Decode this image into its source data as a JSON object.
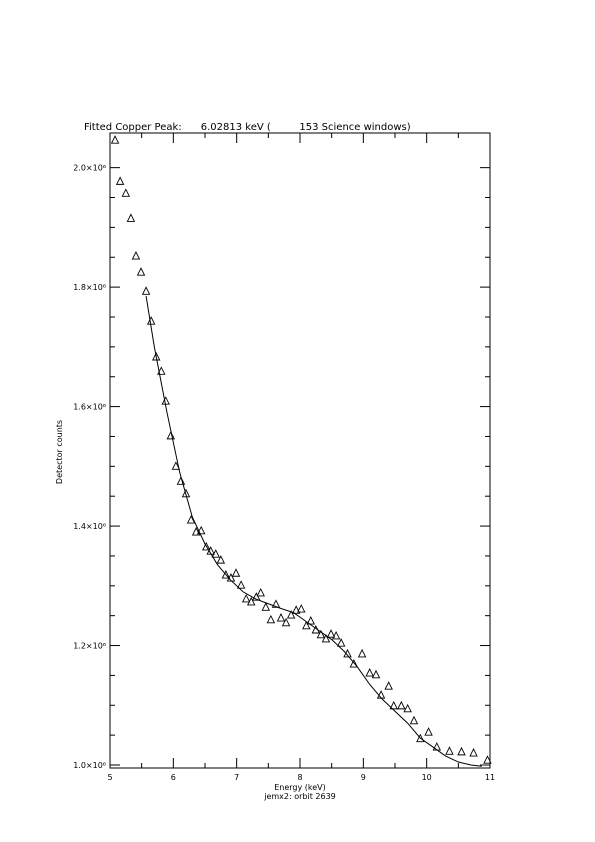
{
  "chart_data": {
    "type": "scatter",
    "title": "Fitted Copper Peak:      6.02813 keV (         153 Science windows)",
    "x_label": "Energy (keV)",
    "subtitle": "jemx2: orbit 2639",
    "y_label": "Detector counts",
    "xlim": [
      5,
      11
    ],
    "xticks": [
      5,
      6,
      7,
      8,
      9,
      10,
      11
    ],
    "ylim": [
      995000,
      2058000
    ],
    "yticks": [
      {
        "value": 1000000,
        "label": "1.0×10⁶"
      },
      {
        "value": 1200000,
        "label": "1.2×10⁶"
      },
      {
        "value": 1400000,
        "label": "1.4×10⁶"
      },
      {
        "value": 1600000,
        "label": "1.6×10⁶"
      },
      {
        "value": 1800000,
        "label": "1.8×10⁶"
      },
      {
        "value": 2000000,
        "label": "2.0×10⁶"
      }
    ],
    "series": [
      {
        "color": "#000000",
        "marker": "triangle",
        "x": [
          5.08,
          5.16,
          5.25,
          5.33,
          5.41,
          5.49,
          5.57,
          5.65,
          5.73,
          5.81,
          5.88,
          5.96,
          6.04,
          6.12,
          6.2,
          6.28,
          6.36,
          6.44,
          6.52,
          6.59,
          6.67,
          6.75,
          6.83,
          6.91,
          6.99,
          7.07,
          7.15,
          7.23,
          7.31,
          7.38,
          7.46,
          7.54,
          7.62,
          7.7,
          7.78,
          7.86,
          7.94,
          8.02,
          8.1,
          8.17,
          8.25,
          8.33,
          8.41,
          8.49,
          8.57,
          8.65,
          8.75,
          8.85,
          8.98,
          9.1,
          9.2,
          9.28,
          9.4,
          9.48,
          9.6,
          9.7,
          9.8,
          9.9,
          10.03,
          10.16,
          10.36,
          10.55,
          10.74,
          10.96
        ],
        "values": [
          2046000,
          1977000,
          1957000,
          1915000,
          1852000,
          1825000,
          1793000,
          1743000,
          1683000,
          1659000,
          1609000,
          1551000,
          1500000,
          1475000,
          1454000,
          1410000,
          1390000,
          1392000,
          1365000,
          1358000,
          1353000,
          1343000,
          1318000,
          1313000,
          1321000,
          1301000,
          1278000,
          1273000,
          1281000,
          1288000,
          1264000,
          1243000,
          1269000,
          1246000,
          1238000,
          1251000,
          1259000,
          1261000,
          1233000,
          1241000,
          1226000,
          1218000,
          1211000,
          1219000,
          1216000,
          1204000,
          1186000,
          1169000,
          1186000,
          1154000,
          1151000,
          1117000,
          1132000,
          1099000,
          1099000,
          1094000,
          1074000,
          1044000,
          1055000,
          1030000,
          1023000,
          1022000,
          1020000,
          1008000
        ]
      },
      {
        "color": "#000000",
        "marker": "line",
        "x": [
          5.57,
          5.7,
          5.9,
          6.1,
          6.3,
          6.5,
          6.7,
          6.9,
          7.1,
          7.3,
          7.5,
          7.7,
          7.9,
          8.1,
          8.3,
          8.5,
          8.7,
          8.9,
          9.1,
          9.3,
          9.5,
          9.7,
          9.9,
          10.1,
          10.3,
          10.5,
          10.7,
          10.87
        ],
        "values": [
          1785000,
          1700000,
          1590000,
          1490000,
          1415000,
          1370000,
          1335000,
          1310000,
          1290000,
          1278000,
          1270000,
          1262000,
          1255000,
          1240000,
          1225000,
          1210000,
          1190000,
          1165000,
          1135000,
          1110000,
          1090000,
          1070000,
          1045000,
          1030000,
          1015000,
          1005000,
          1000000,
          998000
        ]
      }
    ]
  }
}
